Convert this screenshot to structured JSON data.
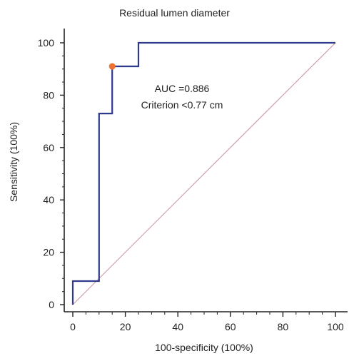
{
  "chart_data": {
    "type": "line",
    "title": "Residual lumen diameter",
    "xlabel": "100-specificity (100%)",
    "ylabel": "Sensitivity (100%)",
    "xlim": [
      0,
      100
    ],
    "ylim": [
      0,
      100
    ],
    "xticks": [
      0,
      20,
      40,
      60,
      80,
      100
    ],
    "yticks": [
      0,
      20,
      40,
      60,
      80,
      100
    ],
    "grid": false,
    "series": [
      {
        "style": "step",
        "color": "#2e3a8c",
        "x": [
          0,
          0,
          10,
          10,
          15,
          15,
          25,
          25,
          100
        ],
        "y": [
          0,
          9,
          9,
          73,
          73,
          91,
          91,
          100,
          100
        ]
      },
      {
        "style": "reference-diagonal",
        "color": "#c9909a",
        "x": [
          0,
          100
        ],
        "y": [
          0,
          100
        ]
      }
    ],
    "highlight_point": {
      "x": 15,
      "y": 91,
      "color": "#f07030"
    },
    "annotations": [
      "AUC =0.886",
      "Criterion <0.77 cm"
    ]
  }
}
